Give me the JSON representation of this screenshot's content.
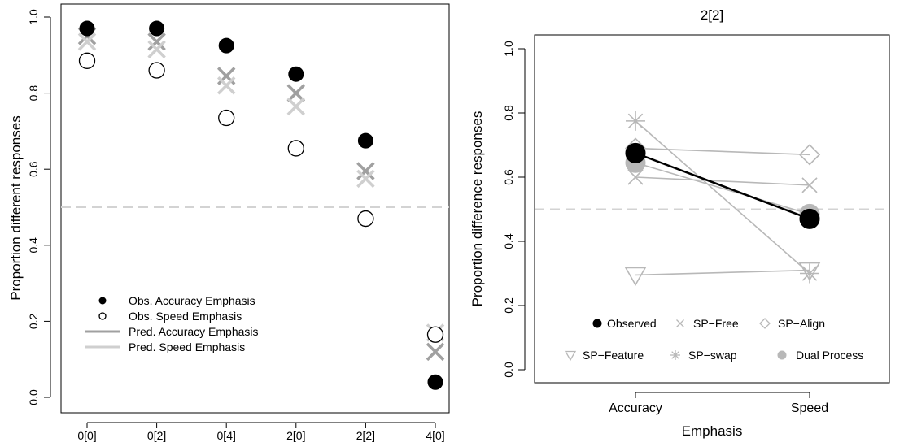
{
  "chart_data": [
    {
      "type": "scatter",
      "title": "",
      "xlabel": "",
      "ylabel": "Proportion different responses",
      "categories": [
        "0[0]",
        "0[2]",
        "0[4]",
        "2[0]",
        "2[2]",
        "4[0]"
      ],
      "ylim": [
        0,
        1
      ],
      "yticks": [
        "0.0",
        "0.2",
        "0.4",
        "0.6",
        "0.8",
        "1.0"
      ],
      "reference_line": 0.5,
      "series": [
        {
          "name": "Obs. Accuracy Emphasis",
          "marker": "filled-circle",
          "color": "#000000",
          "values": [
            0.97,
            0.97,
            0.925,
            0.85,
            0.675,
            0.04
          ]
        },
        {
          "name": "Obs. Speed Emphasis",
          "marker": "open-circle",
          "color": "#000000",
          "values": [
            0.885,
            0.86,
            0.735,
            0.655,
            0.47,
            0.165
          ]
        },
        {
          "name": "Pred. Accuracy Emphasis",
          "marker": "x",
          "color": "#a0a0a0",
          "values": [
            0.95,
            0.935,
            0.845,
            0.8,
            0.595,
            0.12
          ]
        },
        {
          "name": "Pred. Speed Emphasis",
          "marker": "x",
          "color": "#cfcfcf",
          "values": [
            0.935,
            0.915,
            0.82,
            0.765,
            0.575,
            0.17
          ]
        }
      ],
      "legend_position": "bottom-left"
    },
    {
      "type": "line",
      "title": "2[2]",
      "xlabel": "Emphasis",
      "ylabel": "Proportion difference responses",
      "categories": [
        "Accuracy",
        "Speed"
      ],
      "ylim": [
        0,
        1
      ],
      "yticks": [
        "0.0",
        "0.2",
        "0.4",
        "0.6",
        "0.8",
        "1.0"
      ],
      "reference_line": 0.5,
      "series": [
        {
          "name": "Observed",
          "marker": "filled-circle",
          "color": "#000000",
          "values": [
            0.675,
            0.47
          ]
        },
        {
          "name": "SP−Free",
          "marker": "x",
          "color": "#b8b8b8",
          "values": [
            0.6,
            0.575
          ]
        },
        {
          "name": "SP−Align",
          "marker": "diamond",
          "color": "#b8b8b8",
          "values": [
            0.69,
            0.67
          ]
        },
        {
          "name": "SP−Feature",
          "marker": "triangle-down",
          "color": "#b8b8b8",
          "values": [
            0.295,
            0.31
          ]
        },
        {
          "name": "SP−swap",
          "marker": "asterisk",
          "color": "#b8b8b8",
          "values": [
            0.775,
            0.3
          ]
        },
        {
          "name": "Dual Process",
          "marker": "gray-circle",
          "color": "#b8b8b8",
          "values": [
            0.645,
            0.485
          ]
        }
      ],
      "legend_position": "bottom"
    }
  ]
}
